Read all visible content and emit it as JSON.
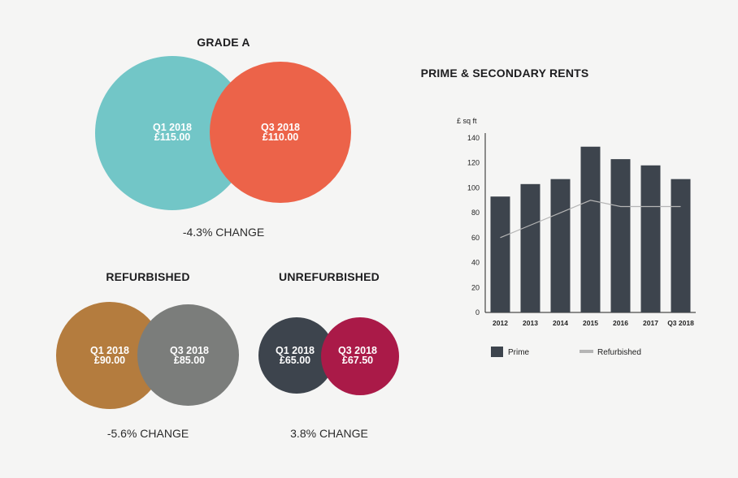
{
  "venns": [
    {
      "key": "grade-a",
      "title": "GRADE A",
      "change": "-4.3% CHANGE",
      "left": {
        "period": "Q1 2018",
        "value": "£115.00",
        "color": "#72c6c7"
      },
      "right": {
        "period": "Q3 2018",
        "value": "£110.00",
        "color": "#ec6349"
      }
    },
    {
      "key": "refurbished",
      "title": "REFURBISHED",
      "change": "-5.6% CHANGE",
      "left": {
        "period": "Q1 2018",
        "value": "£90.00",
        "color": "#b47c3e"
      },
      "right": {
        "period": "Q3 2018",
        "value": "£85.00",
        "color": "#7b7d7b"
      }
    },
    {
      "key": "unrefurbished",
      "title": "UNREFURBISHED",
      "change": "3.8% CHANGE",
      "left": {
        "period": "Q1 2018",
        "value": "£65.00",
        "color": "#3d444d"
      },
      "right": {
        "period": "Q3 2018",
        "value": "£67.50",
        "color": "#aa1a48"
      }
    }
  ],
  "chart_data": {
    "type": "bar",
    "title": "PRIME & SECONDARY RENTS",
    "ylabel": "£ sq ft",
    "xlabel": "",
    "categories": [
      "2012",
      "2013",
      "2014",
      "2015",
      "2016",
      "2017",
      "Q3 2018"
    ],
    "ylim": [
      0,
      140
    ],
    "yticks": [
      0,
      20,
      40,
      60,
      80,
      100,
      120,
      140
    ],
    "series": [
      {
        "name": "Prime",
        "type": "bar",
        "color": "#3d444d",
        "values": [
          93,
          103,
          107,
          133,
          123,
          118,
          107
        ]
      },
      {
        "name": "Refurbished",
        "type": "line",
        "color": "#b5b5b5",
        "values": [
          60,
          70,
          80,
          90,
          85,
          85,
          85
        ]
      }
    ],
    "legend": "bottom-left",
    "grid": false
  }
}
